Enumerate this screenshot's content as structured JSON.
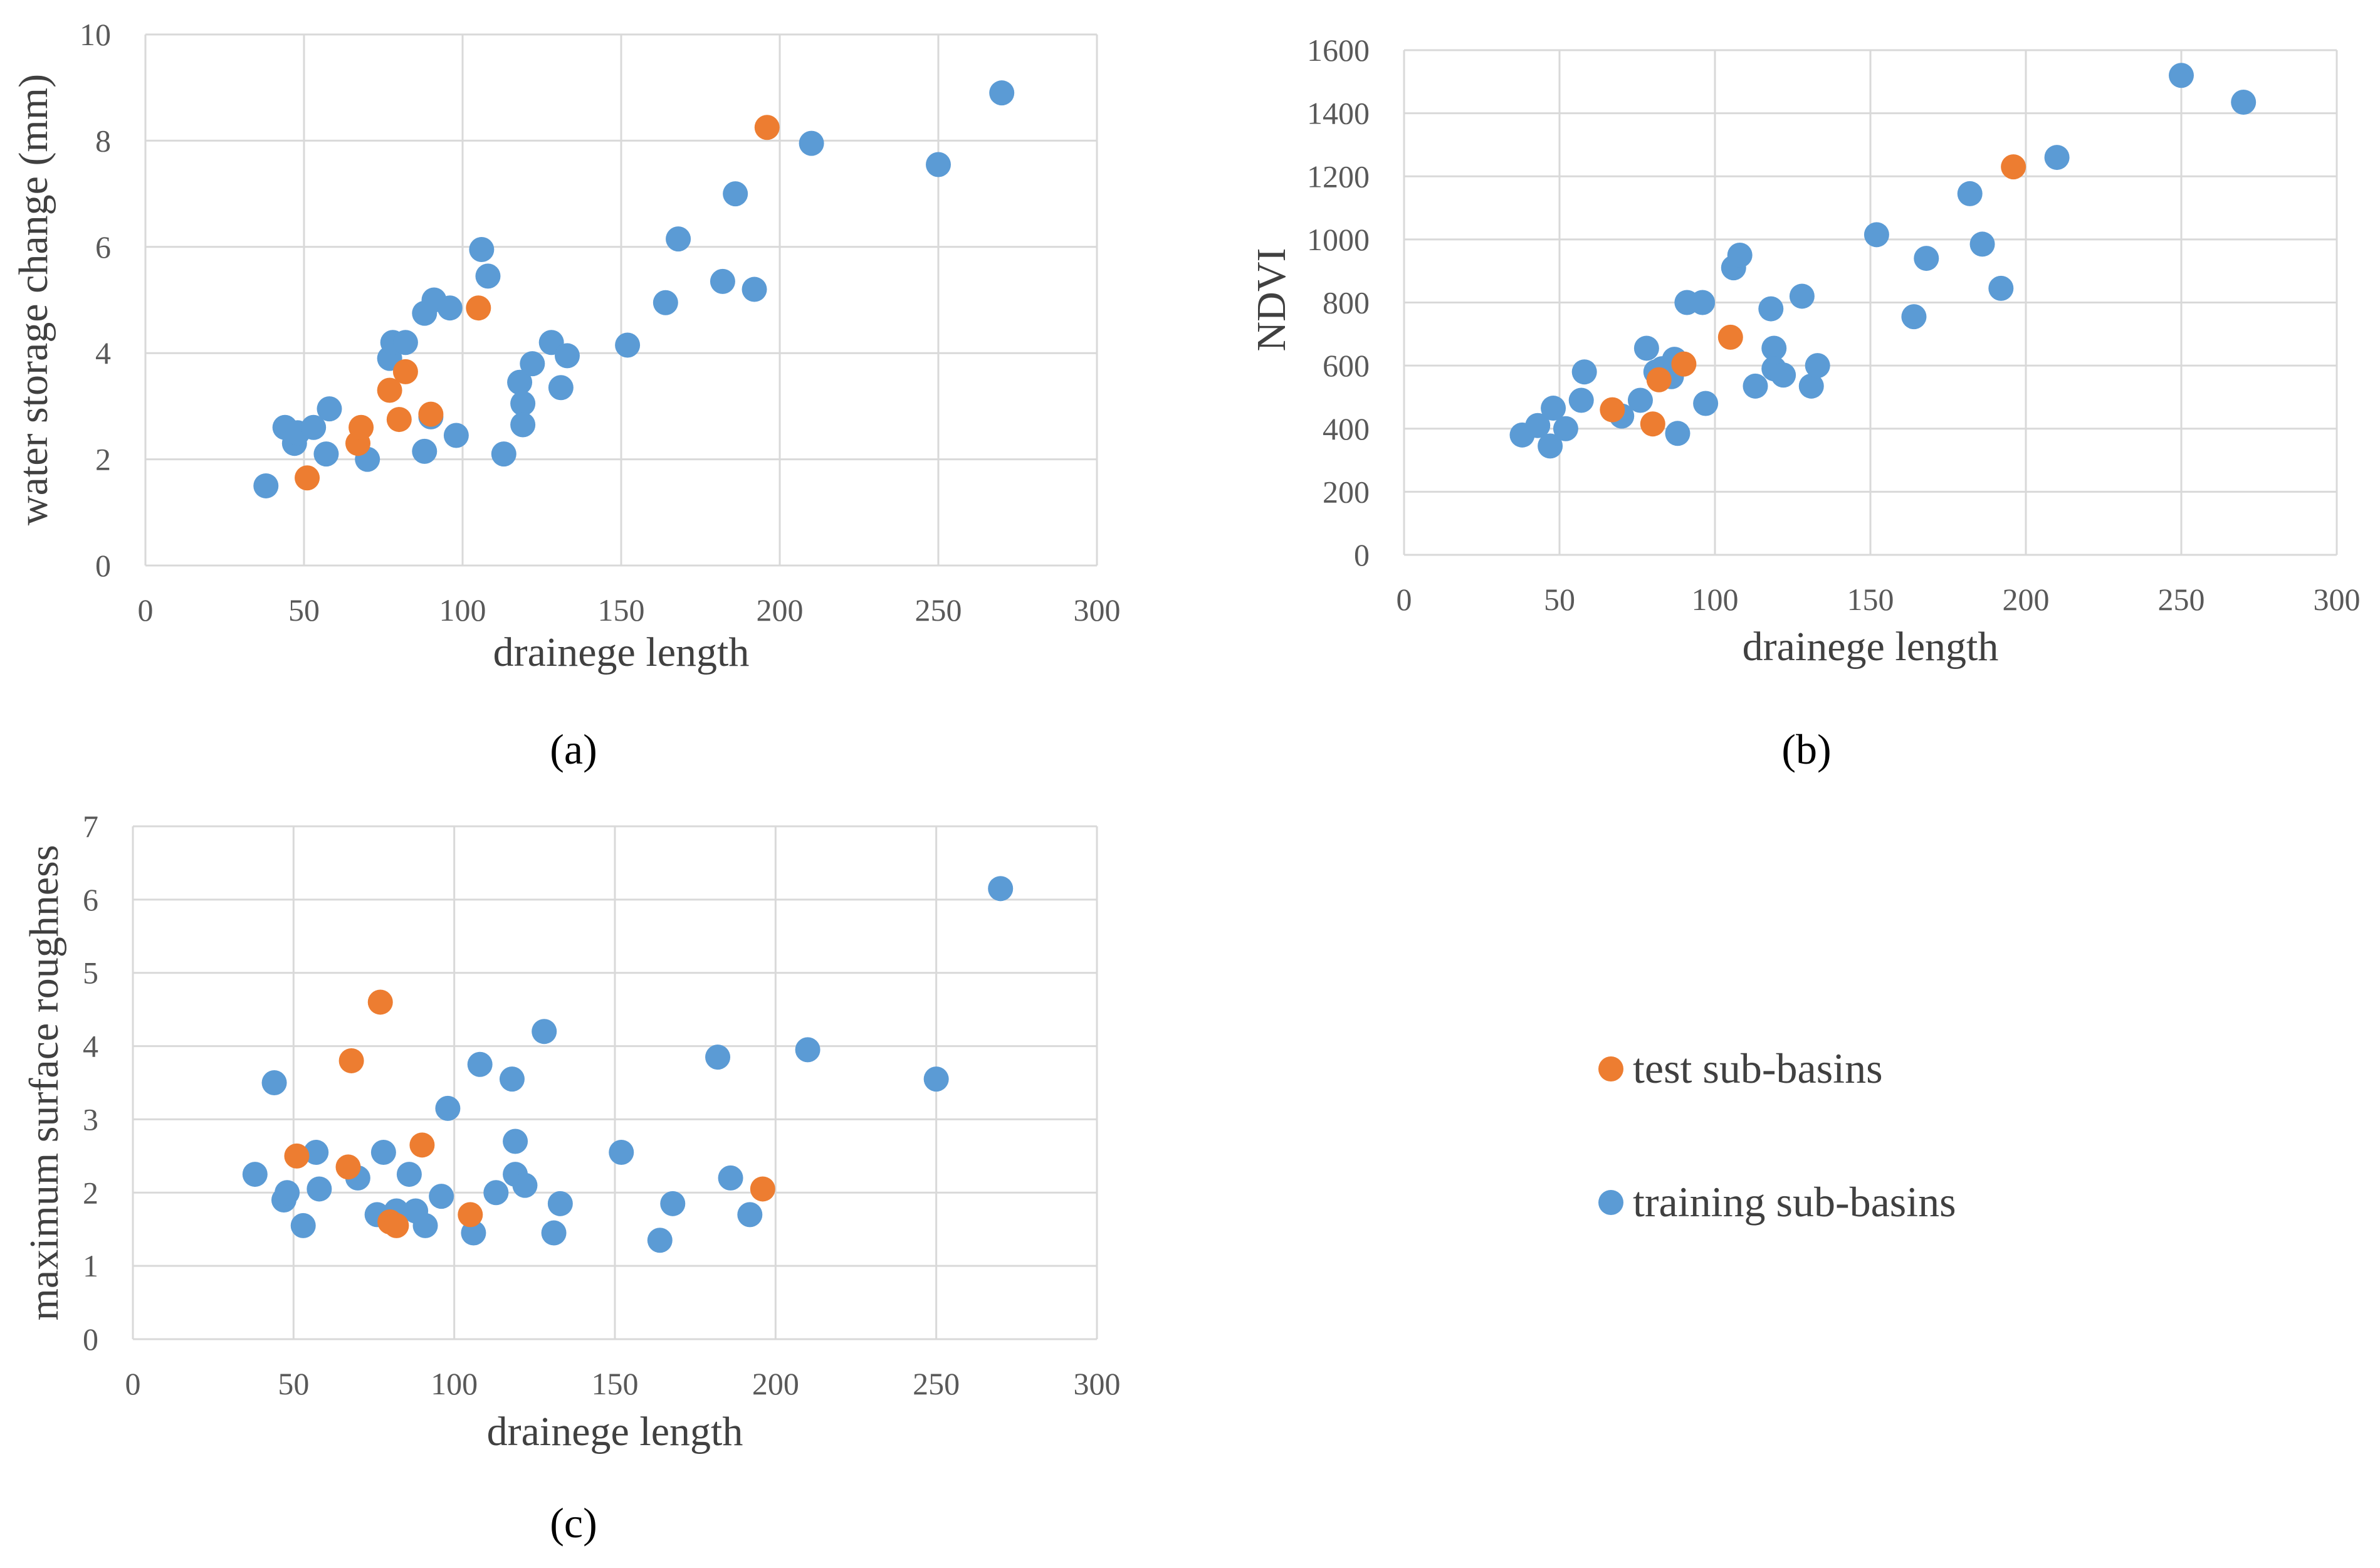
{
  "legend": {
    "test_label": "test sub-basins",
    "training_label": "training sub-basins"
  },
  "colors": {
    "test": "#ED7D31",
    "training": "#5B9BD5",
    "grid": "#D9D9D9"
  },
  "chart_data": [
    {
      "type": "scatter",
      "panel": "a",
      "panel_label": "(a)",
      "xlabel": "drainege length",
      "ylabel": "water storage change (mm)",
      "xlim": [
        0,
        300
      ],
      "ylim": [
        0,
        10
      ],
      "xticks": [
        0,
        50,
        100,
        150,
        200,
        250,
        300
      ],
      "yticks": [
        0,
        2,
        4,
        6,
        8,
        10
      ],
      "series": [
        {
          "name": "test sub-basins",
          "points": [
            [
              51,
              1.65
            ],
            [
              67,
              2.3
            ],
            [
              68,
              2.6
            ],
            [
              77,
              3.3
            ],
            [
              80,
              2.75
            ],
            [
              82,
              3.65
            ],
            [
              90,
              2.85
            ],
            [
              105,
              4.85
            ],
            [
              196,
              8.25
            ]
          ]
        },
        {
          "name": "training sub-basins",
          "points": [
            [
              38,
              1.5
            ],
            [
              44,
              2.6
            ],
            [
              47,
              2.3
            ],
            [
              48,
              2.5
            ],
            [
              53,
              2.6
            ],
            [
              57,
              2.1
            ],
            [
              58,
              2.95
            ],
            [
              70,
              2.0
            ],
            [
              77,
              3.9
            ],
            [
              78,
              4.2
            ],
            [
              82,
              4.2
            ],
            [
              88,
              2.15
            ],
            [
              88,
              4.75
            ],
            [
              90,
              2.8
            ],
            [
              91,
              5.0
            ],
            [
              96,
              4.85
            ],
            [
              98,
              2.45
            ],
            [
              106,
              5.95
            ],
            [
              108,
              5.45
            ],
            [
              113,
              2.1
            ],
            [
              118,
              3.45
            ],
            [
              119,
              3.05
            ],
            [
              119,
              2.65
            ],
            [
              122,
              3.8
            ],
            [
              128,
              4.2
            ],
            [
              131,
              3.35
            ],
            [
              133,
              3.95
            ],
            [
              152,
              4.15
            ],
            [
              164,
              4.95
            ],
            [
              168,
              6.15
            ],
            [
              182,
              5.35
            ],
            [
              186,
              7.0
            ],
            [
              192,
              5.2
            ],
            [
              210,
              7.95
            ],
            [
              250,
              7.55
            ],
            [
              270,
              8.9
            ]
          ]
        }
      ]
    },
    {
      "type": "scatter",
      "panel": "b",
      "panel_label": "(b)",
      "xlabel": "drainege length",
      "ylabel": "NDVI",
      "xlim": [
        0,
        300
      ],
      "ylim": [
        0,
        1600
      ],
      "xticks": [
        0,
        50,
        100,
        150,
        200,
        250,
        300
      ],
      "yticks": [
        0,
        200,
        400,
        600,
        800,
        1000,
        1200,
        1400,
        1600
      ],
      "series": [
        {
          "name": "test sub-basins",
          "points": [
            [
              67,
              460
            ],
            [
              80,
              415
            ],
            [
              82,
              555
            ],
            [
              90,
              605
            ],
            [
              105,
              690
            ],
            [
              196,
              1230
            ]
          ]
        },
        {
          "name": "training sub-basins",
          "points": [
            [
              38,
              380
            ],
            [
              43,
              410
            ],
            [
              47,
              345
            ],
            [
              48,
              465
            ],
            [
              52,
              400
            ],
            [
              57,
              490
            ],
            [
              58,
              580
            ],
            [
              70,
              440
            ],
            [
              76,
              490
            ],
            [
              78,
              655
            ],
            [
              81,
              580
            ],
            [
              83,
              590
            ],
            [
              86,
              565
            ],
            [
              87,
              620
            ],
            [
              88,
              385
            ],
            [
              91,
              800
            ],
            [
              96,
              800
            ],
            [
              97,
              480
            ],
            [
              106,
              910
            ],
            [
              108,
              950
            ],
            [
              113,
              535
            ],
            [
              118,
              780
            ],
            [
              119,
              655
            ],
            [
              119,
              590
            ],
            [
              122,
              570
            ],
            [
              128,
              820
            ],
            [
              131,
              535
            ],
            [
              133,
              600
            ],
            [
              152,
              1015
            ],
            [
              164,
              755
            ],
            [
              168,
              940
            ],
            [
              182,
              1145
            ],
            [
              186,
              985
            ],
            [
              192,
              845
            ],
            [
              210,
              1260
            ],
            [
              250,
              1520
            ],
            [
              270,
              1435
            ]
          ]
        }
      ]
    },
    {
      "type": "scatter",
      "panel": "c",
      "panel_label": "(c)",
      "xlabel": "drainege length",
      "ylabel": "maximum surface roughness",
      "xlim": [
        0,
        300
      ],
      "ylim": [
        0,
        7
      ],
      "xticks": [
        0,
        50,
        100,
        150,
        200,
        250,
        300
      ],
      "yticks": [
        0,
        1,
        2,
        3,
        4,
        5,
        6,
        7
      ],
      "series": [
        {
          "name": "test sub-basins",
          "points": [
            [
              51,
              2.5
            ],
            [
              67,
              2.35
            ],
            [
              68,
              3.8
            ],
            [
              77,
              4.6
            ],
            [
              80,
              1.6
            ],
            [
              82,
              1.55
            ],
            [
              90,
              2.65
            ],
            [
              105,
              1.7
            ],
            [
              196,
              2.05
            ]
          ]
        },
        {
          "name": "training sub-basins",
          "points": [
            [
              38,
              2.25
            ],
            [
              44,
              3.5
            ],
            [
              47,
              1.9
            ],
            [
              48,
              2.0
            ],
            [
              53,
              1.55
            ],
            [
              57,
              2.55
            ],
            [
              58,
              2.05
            ],
            [
              70,
              2.2
            ],
            [
              76,
              1.7
            ],
            [
              78,
              2.55
            ],
            [
              82,
              1.75
            ],
            [
              86,
              2.25
            ],
            [
              88,
              1.75
            ],
            [
              91,
              1.55
            ],
            [
              96,
              1.95
            ],
            [
              98,
              3.15
            ],
            [
              106,
              1.45
            ],
            [
              108,
              3.75
            ],
            [
              113,
              2.0
            ],
            [
              118,
              3.55
            ],
            [
              119,
              2.7
            ],
            [
              119,
              2.25
            ],
            [
              122,
              2.1
            ],
            [
              128,
              4.2
            ],
            [
              131,
              1.45
            ],
            [
              133,
              1.85
            ],
            [
              152,
              2.55
            ],
            [
              164,
              1.35
            ],
            [
              168,
              1.85
            ],
            [
              182,
              3.85
            ],
            [
              186,
              2.2
            ],
            [
              192,
              1.7
            ],
            [
              210,
              3.95
            ],
            [
              250,
              3.55
            ],
            [
              270,
              6.15
            ]
          ]
        }
      ]
    }
  ]
}
